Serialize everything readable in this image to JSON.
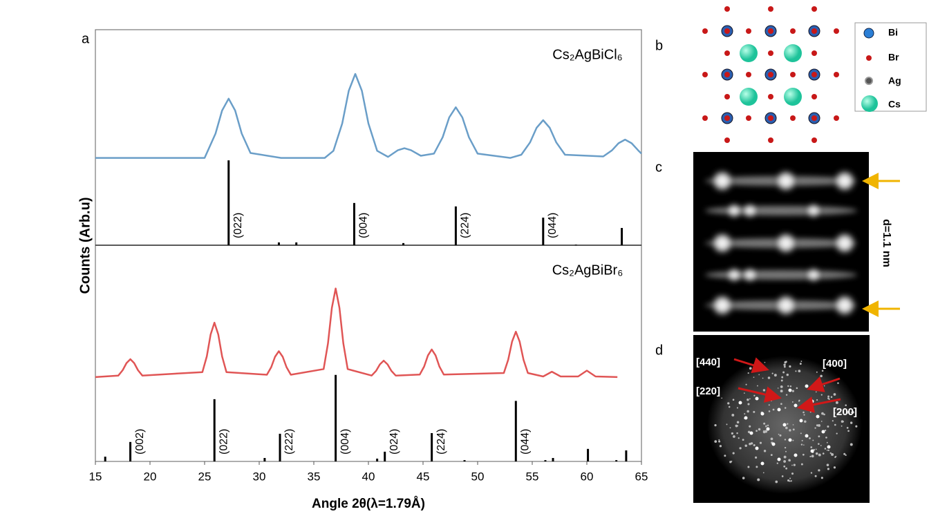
{
  "panel_labels": [
    "a",
    "b",
    "c",
    "d"
  ],
  "chart_data": [
    {
      "type": "line",
      "title": "Cs₂AgBiCl₆",
      "ylabel": "Counts (Arb.u)",
      "color": "#6a9ec8",
      "xlim": [
        15,
        65
      ],
      "ylim": [
        0,
        100
      ],
      "x": [
        15,
        20,
        25,
        25.2,
        26.0,
        26.6,
        27.2,
        27.8,
        28.4,
        29.2,
        32,
        36,
        36.8,
        37.6,
        38.2,
        38.8,
        39.4,
        40.0,
        40.8,
        41.8,
        42.7,
        43.3,
        43.9,
        44.8,
        46.0,
        46.8,
        47.4,
        48.0,
        48.6,
        49.2,
        50.0,
        53,
        54.0,
        54.8,
        55.4,
        56.0,
        56.6,
        57.2,
        58.0,
        61.5,
        62.3,
        62.9,
        63.5,
        64.1,
        64.7,
        65
      ],
      "values": [
        40.5,
        40.5,
        40.5,
        42.8,
        51.8,
        62.5,
        68,
        62.5,
        51.8,
        42.8,
        40.5,
        40.5,
        43.8,
        56.5,
        71.7,
        79.5,
        71.7,
        56.5,
        43.8,
        41,
        44.1,
        45,
        44.1,
        41.5,
        42.5,
        50.1,
        59.3,
        64,
        59.3,
        50.1,
        42.5,
        40.5,
        42,
        47.7,
        54.5,
        58,
        54.5,
        47.7,
        42,
        41.2,
        44,
        47.3,
        49,
        47.3,
        44,
        42.5
      ],
      "sticks": {
        "x": [
          27.2,
          31.8,
          33.4,
          38.7,
          43.2,
          48.0,
          56.0,
          59.0,
          63.2
        ],
        "values": [
          39.4,
          1.3,
          1.3,
          19.6,
          1,
          18,
          12.8,
          0.3,
          8
        ],
        "labels": [
          "(022)",
          null,
          null,
          "(004)",
          null,
          "(224)",
          "(044)",
          null,
          null
        ]
      }
    },
    {
      "type": "line",
      "title": "Cs₂AgBiBr₆",
      "xlabel": "Angle 2θ(λ=1.79Å)",
      "color": "#e05555",
      "xlim": [
        15,
        65
      ],
      "ylim": [
        0,
        100
      ],
      "xticks": [
        15,
        20,
        25,
        30,
        35,
        40,
        45,
        50,
        55,
        60,
        65
      ],
      "x": [
        15,
        17.1,
        17.5,
        17.85,
        18.2,
        18.55,
        18.9,
        19.3,
        24.8,
        25.2,
        25.55,
        25.9,
        26.25,
        26.6,
        27.0,
        30.7,
        31.1,
        31.45,
        31.8,
        32.15,
        32.5,
        32.9,
        35.9,
        36.3,
        36.65,
        37,
        37.35,
        37.7,
        38.1,
        40.3,
        40.7,
        41.05,
        41.4,
        41.75,
        42.1,
        42.5,
        44.7,
        45.1,
        45.45,
        45.8,
        46.15,
        46.5,
        46.9,
        52.4,
        52.8,
        53.15,
        53.5,
        53.85,
        54.2,
        54.6,
        56.0,
        56.8,
        57.6,
        59.2,
        60,
        60.8,
        62.8
      ],
      "values": [
        39,
        39.7,
        42.2,
        45.5,
        47.3,
        45.5,
        42.2,
        39.7,
        41.3,
        48.6,
        58.7,
        64.2,
        58.7,
        48.6,
        41.3,
        40.1,
        43.6,
        48.4,
        51,
        48.4,
        43.6,
        40.1,
        42.7,
        54.6,
        71,
        80,
        71,
        54.6,
        42.7,
        39.7,
        41.9,
        44.9,
        46.6,
        44.9,
        41.9,
        39.7,
        40.2,
        43.9,
        49,
        51.8,
        49,
        43.9,
        40.2,
        40.9,
        47,
        55.4,
        60,
        55.4,
        47,
        40.9,
        39.3,
        41.5,
        39.3,
        39.3,
        42,
        39.3,
        39
      ],
      "sticks": {
        "x": [
          15.9,
          18.2,
          25.9,
          30.5,
          31.9,
          37,
          40.8,
          41.5,
          45.8,
          48.8,
          53.5,
          56.2,
          56.9,
          60.1,
          62.7,
          63.6
        ],
        "values": [
          2.2,
          9,
          28.8,
          1.6,
          12.8,
          40,
          1.3,
          4.5,
          13.1,
          0.6,
          28,
          0.6,
          1.6,
          5.8,
          0.6,
          5.1
        ],
        "labels": [
          null,
          "(002)",
          "(022)",
          null,
          "(222)",
          "(004)",
          null,
          "(024)",
          "(224)",
          null,
          "(044)",
          null,
          null,
          null,
          null,
          null
        ]
      }
    }
  ],
  "structure_legend": [
    "Bi",
    "Br",
    "Ag",
    "Cs"
  ],
  "stem": {
    "annotation": "d=1.1 nm"
  },
  "fft": {
    "labels": [
      "[440]",
      "[400]",
      "[220]",
      "[200]"
    ]
  }
}
